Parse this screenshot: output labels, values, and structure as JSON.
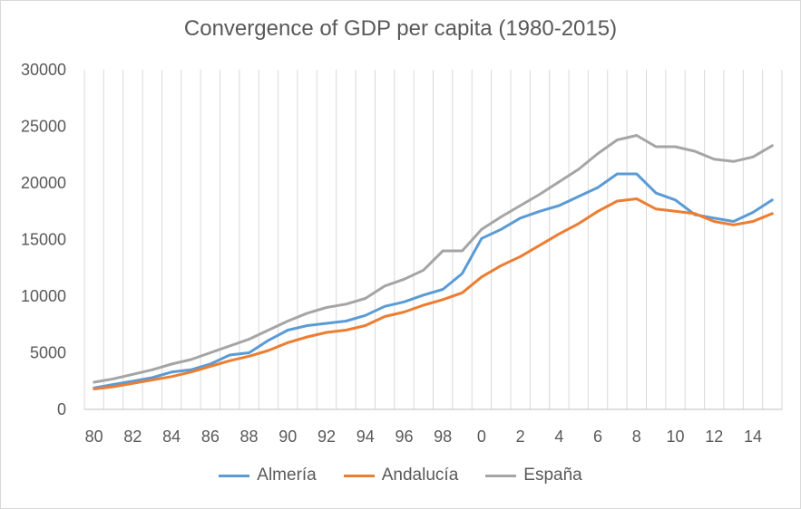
{
  "chart_data": {
    "type": "line",
    "title": "Convergence of GDP per capita (1980-2015)",
    "x": [
      80,
      81,
      82,
      83,
      84,
      85,
      86,
      87,
      88,
      89,
      90,
      91,
      92,
      93,
      94,
      95,
      96,
      97,
      98,
      99,
      0,
      1,
      2,
      3,
      4,
      5,
      6,
      7,
      8,
      9,
      10,
      11,
      12,
      13,
      14,
      15
    ],
    "x_tick_labels": [
      "80",
      "82",
      "84",
      "86",
      "88",
      "90",
      "92",
      "94",
      "96",
      "98",
      "0",
      "2",
      "4",
      "6",
      "8",
      "10",
      "12",
      "14"
    ],
    "ylim": [
      0,
      30000
    ],
    "y_ticks": [
      0,
      5000,
      10000,
      15000,
      20000,
      25000,
      30000
    ],
    "grid": "vertical",
    "legend": "bottom",
    "series": [
      {
        "name": "Almería",
        "color": "#5b9bd5",
        "values": [
          1900,
          2200,
          2500,
          2800,
          3300,
          3500,
          4000,
          4800,
          5000,
          6100,
          7000,
          7400,
          7600,
          7800,
          8300,
          9100,
          9500,
          10100,
          10600,
          12000,
          15100,
          15900,
          16900,
          17500,
          18000,
          18800,
          19600,
          20800,
          20800,
          19100,
          18500,
          17200,
          16900,
          16600,
          17400,
          18500
        ]
      },
      {
        "name": "Andalucía",
        "color": "#ed7d31",
        "values": [
          1800,
          2000,
          2300,
          2600,
          2900,
          3300,
          3800,
          4300,
          4700,
          5200,
          5900,
          6400,
          6800,
          7000,
          7400,
          8200,
          8600,
          9200,
          9700,
          10300,
          11700,
          12700,
          13500,
          14500,
          15500,
          16400,
          17500,
          18400,
          18600,
          17700,
          17500,
          17300,
          16600,
          16300,
          16600,
          17300
        ]
      },
      {
        "name": "España",
        "color": "#a5a5a5",
        "values": [
          2400,
          2700,
          3100,
          3500,
          4000,
          4400,
          5000,
          5600,
          6200,
          7000,
          7800,
          8500,
          9000,
          9300,
          9800,
          10900,
          11500,
          12300,
          14000,
          14000,
          15900,
          17000,
          18000,
          19000,
          20100,
          21200,
          22600,
          23800,
          24200,
          23200,
          23200,
          22800,
          22100,
          21900,
          22300,
          23300
        ]
      }
    ]
  }
}
